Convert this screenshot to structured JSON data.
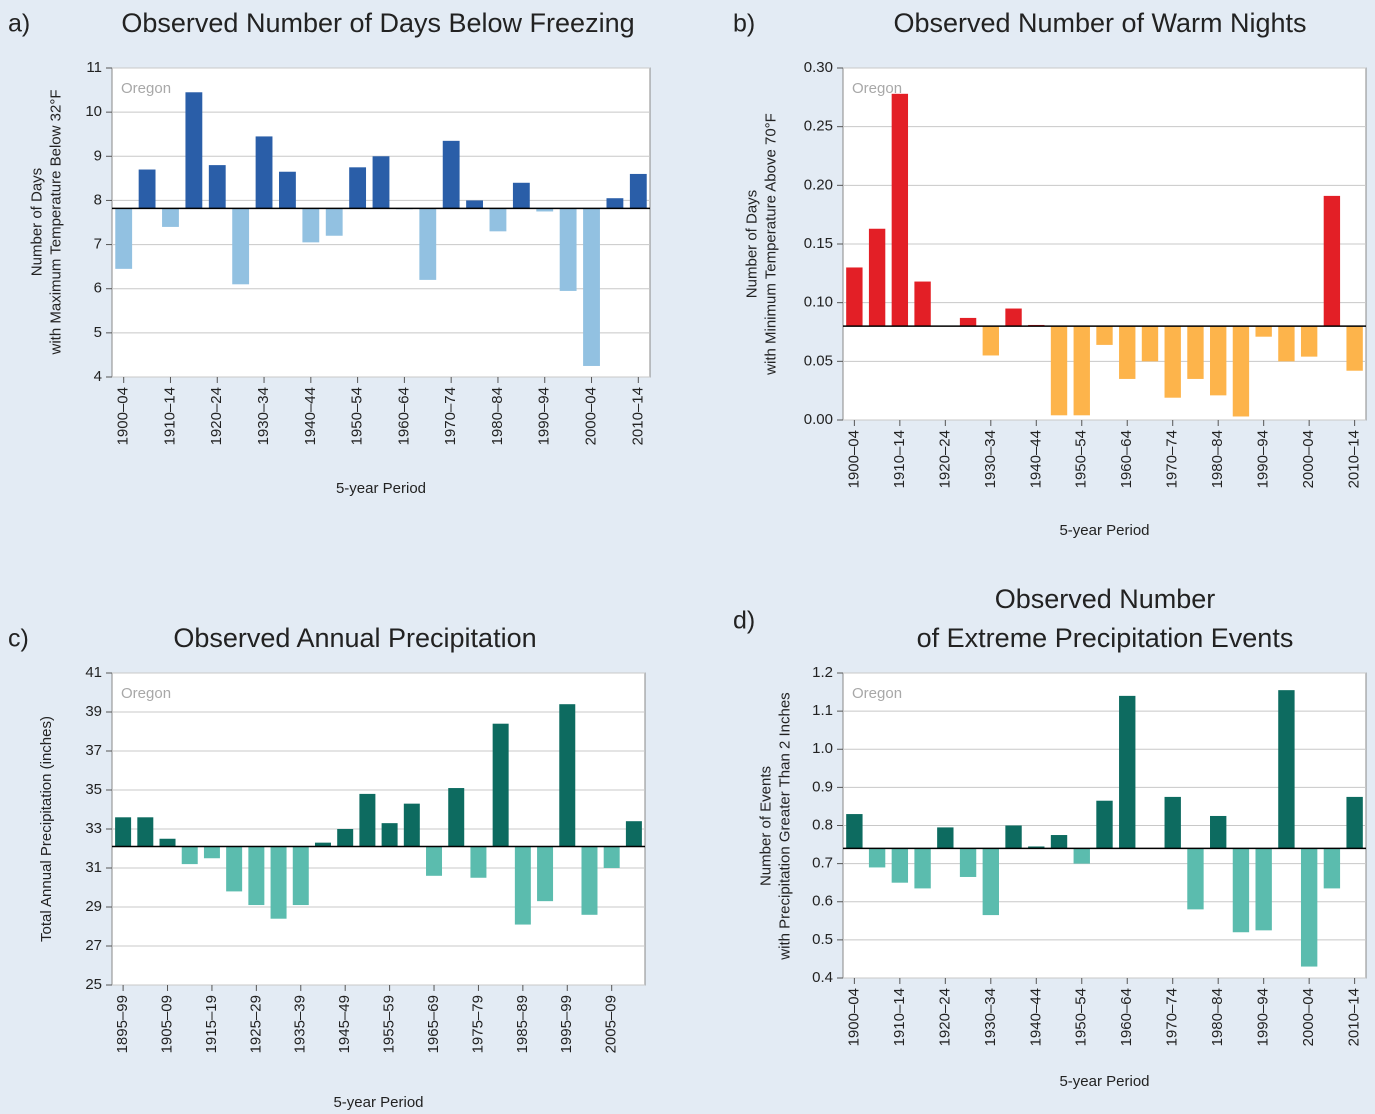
{
  "chart_data": [
    {
      "type": "bar",
      "panel_label": "a)",
      "title": [
        "Observed Number of Days Below Freezing"
      ],
      "annotation": "Oregon",
      "ylabel": [
        "Number of Days",
        "with Maximum Temperature Below 32°F"
      ],
      "xlabel": "5-year Period",
      "categories": [
        "1900–04",
        null,
        "1910–14",
        null,
        "1920–24",
        null,
        "1930–34",
        null,
        "1940–44",
        null,
        "1950–54",
        null,
        "1960–64",
        null,
        "1970–74",
        null,
        "1980–84",
        null,
        "1990–94",
        null,
        "2000–04",
        null,
        "2010–14"
      ],
      "values": [
        6.45,
        8.7,
        7.4,
        10.45,
        8.8,
        6.1,
        9.45,
        8.65,
        7.05,
        7.2,
        8.75,
        9.0,
        7.8,
        6.2,
        9.35,
        8.0,
        7.3,
        8.4,
        7.75,
        5.95,
        4.25,
        8.05,
        8.6
      ],
      "baseline": 7.82,
      "color_above": "#2a5ea8",
      "color_below": "#92c1e1",
      "ylim": [
        4,
        11
      ],
      "yticks": [
        4,
        5,
        6,
        7,
        8,
        9,
        10,
        11
      ],
      "grid": true
    },
    {
      "type": "bar",
      "panel_label": "b)",
      "title": [
        "Observed Number of Warm Nights"
      ],
      "annotation": "Oregon",
      "ylabel": [
        "Number of Days",
        "with Minimum Temperature Above 70°F"
      ],
      "xlabel": "5-year Period",
      "categories": [
        "1900–04",
        null,
        "1910–14",
        null,
        "1920–24",
        null,
        "1930–34",
        null,
        "1940–44",
        null,
        "1950–54",
        null,
        "1960–64",
        null,
        "1970–74",
        null,
        "1980–84",
        null,
        "1990–94",
        null,
        "2000–04",
        null,
        "2010–14"
      ],
      "values": [
        0.13,
        0.163,
        0.278,
        0.118,
        0.08,
        0.087,
        0.055,
        0.095,
        0.081,
        0.004,
        0.004,
        0.064,
        0.035,
        0.05,
        0.019,
        0.035,
        0.021,
        0.003,
        0.071,
        0.05,
        0.054,
        0.191,
        0.042
      ],
      "baseline": 0.08,
      "color_above": "#e31f26",
      "color_below": "#fdb44b",
      "ylim": [
        0,
        0.3
      ],
      "yticks": [
        {
          "value": 0,
          "label": "0.00"
        },
        {
          "value": 0.05,
          "label": "0.05"
        },
        {
          "value": 0.1,
          "label": "0.10"
        },
        {
          "value": 0.15,
          "label": "0.15"
        },
        {
          "value": 0.2,
          "label": "0.20"
        },
        {
          "value": 0.25,
          "label": "0.25"
        },
        {
          "value": 0.3,
          "label": "0.30"
        }
      ],
      "grid": true
    },
    {
      "type": "bar",
      "panel_label": "c)",
      "title": [
        "Observed Annual Precipitation"
      ],
      "annotation": "Oregon",
      "ylabel": [
        "Total Annual Precipitation (inches)"
      ],
      "xlabel": "5-year Period",
      "categories": [
        "1895–99",
        null,
        "1905–09",
        null,
        "1915–19",
        null,
        "1925–29",
        null,
        "1935–39",
        null,
        "1945–49",
        null,
        "1955–59",
        null,
        "1965–69",
        null,
        "1975–79",
        null,
        "1985–89",
        null,
        "1995–99",
        null,
        "2005–09",
        null
      ],
      "values": [
        33.6,
        33.6,
        32.5,
        31.2,
        31.5,
        29.8,
        29.1,
        28.4,
        29.1,
        32.3,
        33.0,
        34.8,
        33.3,
        34.3,
        30.6,
        35.1,
        30.5,
        38.4,
        28.1,
        29.3,
        39.4,
        28.6,
        31.0,
        33.4
      ],
      "baseline": 32.1,
      "color_above": "#0d6b60",
      "color_below": "#5bbcae",
      "ylim": [
        25,
        41
      ],
      "yticks": [
        25,
        27,
        29,
        31,
        33,
        35,
        37,
        39,
        41
      ],
      "grid": true
    },
    {
      "type": "bar",
      "panel_label": "d)",
      "title": [
        "Observed Number",
        "of Extreme Precipitation Events"
      ],
      "annotation": "Oregon",
      "ylabel": [
        "Number of Events",
        "with Precipitation Greater Than 2 Inches"
      ],
      "xlabel": "5-year Period",
      "categories": [
        "1900–04",
        null,
        "1910–14",
        null,
        "1920–24",
        null,
        "1930–34",
        null,
        "1940–44",
        null,
        "1950–54",
        null,
        "1960–64",
        null,
        "1970–74",
        null,
        "1980–84",
        null,
        "1990–94",
        null,
        "2000–04",
        null,
        "2010–14"
      ],
      "values": [
        0.83,
        0.69,
        0.65,
        0.635,
        0.795,
        0.665,
        0.565,
        0.8,
        0.745,
        0.775,
        0.7,
        0.865,
        1.14,
        0.74,
        0.875,
        0.58,
        0.825,
        0.52,
        0.525,
        1.155,
        0.43,
        0.635,
        0.875
      ],
      "baseline": 0.74,
      "color_above": "#0d6b60",
      "color_below": "#5bbcae",
      "ylim": [
        0.4,
        1.2
      ],
      "yticks": [
        0.4,
        0.5,
        0.6,
        0.7,
        0.8,
        0.9,
        {
          "value": 1,
          "label": "1.0"
        },
        1.1,
        1.2
      ],
      "grid": true
    }
  ]
}
